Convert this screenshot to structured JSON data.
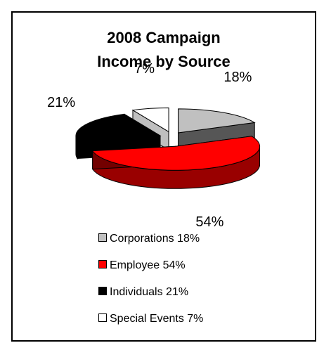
{
  "chart_data": {
    "type": "pie",
    "title": "2008 Campaign\nIncome by Source",
    "title_lines": [
      "2008 Campaign",
      "Income by Source"
    ],
    "categories": [
      "Corporations",
      "Employee",
      "Individuals",
      "Special Events"
    ],
    "values": [
      18,
      54,
      21,
      7
    ],
    "data_labels": [
      "18%",
      "54%",
      "21%",
      "7%"
    ],
    "legend": [
      {
        "label": "Corporations 18%",
        "color": "#c0c0c0"
      },
      {
        "label": "Employee 54%",
        "color": "#ff0000"
      },
      {
        "label": "Individuals 21%",
        "color": "#000000"
      },
      {
        "label": "Special Events 7%",
        "color": "#ffffff"
      }
    ],
    "legend_position": "bottom",
    "colors": {
      "Corporations": "#c0c0c0",
      "Employee": "#ff0000",
      "Individuals": "#000000",
      "Special Events": "#ffffff"
    },
    "style": "3d-exploded"
  }
}
